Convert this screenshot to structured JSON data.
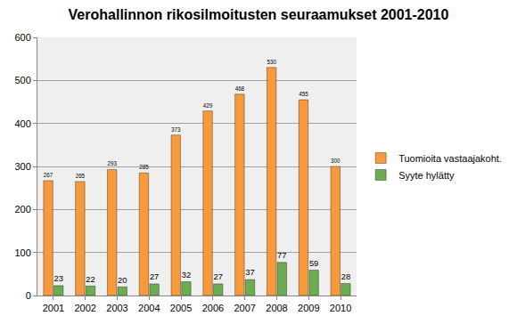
{
  "chart_data": {
    "type": "bar",
    "title": "Verohallinnon rikosilmoitusten seuraamukset 2001-2010",
    "categories": [
      "2001",
      "2002",
      "2003",
      "2004",
      "2005",
      "2006",
      "2007",
      "2008",
      "2009",
      "2010"
    ],
    "series": [
      {
        "name": "Tuomioita vastaajakoht.",
        "color": "#f79a3e",
        "values": [
          267,
          265,
          293,
          285,
          373,
          429,
          468,
          530,
          455,
          300
        ]
      },
      {
        "name": "Syyte hylätty",
        "color": "#6cad52",
        "values": [
          23,
          22,
          20,
          27,
          32,
          27,
          37,
          77,
          59,
          28
        ]
      }
    ],
    "ylim": [
      0,
      600
    ],
    "yticks": [
      0,
      100,
      200,
      300,
      400,
      500,
      600
    ],
    "grid": true,
    "legend": "right",
    "data_labels": true
  }
}
